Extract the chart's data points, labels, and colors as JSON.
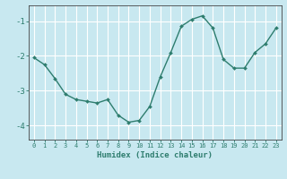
{
  "x": [
    0,
    1,
    2,
    3,
    4,
    5,
    6,
    7,
    8,
    9,
    10,
    11,
    12,
    13,
    14,
    15,
    16,
    17,
    18,
    19,
    20,
    21,
    22,
    23
  ],
  "y": [
    -2.05,
    -2.25,
    -2.65,
    -3.1,
    -3.25,
    -3.3,
    -3.35,
    -3.25,
    -3.7,
    -3.9,
    -3.85,
    -3.45,
    -2.6,
    -1.9,
    -1.15,
    -0.95,
    -0.85,
    -1.2,
    -2.1,
    -2.35,
    -2.35,
    -1.9,
    -1.65,
    -1.2
  ],
  "line_color": "#2e7d6e",
  "marker": "D",
  "marker_size": 2.0,
  "bg_color": "#c8e8f0",
  "grid_color": "#ffffff",
  "axis_color": "#2e7d6e",
  "xlabel": "Humidex (Indice chaleur)",
  "yticks": [
    -4,
    -3,
    -2,
    -1
  ],
  "xticks": [
    0,
    1,
    2,
    3,
    4,
    5,
    6,
    7,
    8,
    9,
    10,
    11,
    12,
    13,
    14,
    15,
    16,
    17,
    18,
    19,
    20,
    21,
    22,
    23
  ],
  "ylim": [
    -4.4,
    -0.55
  ],
  "xlim": [
    -0.5,
    23.5
  ]
}
